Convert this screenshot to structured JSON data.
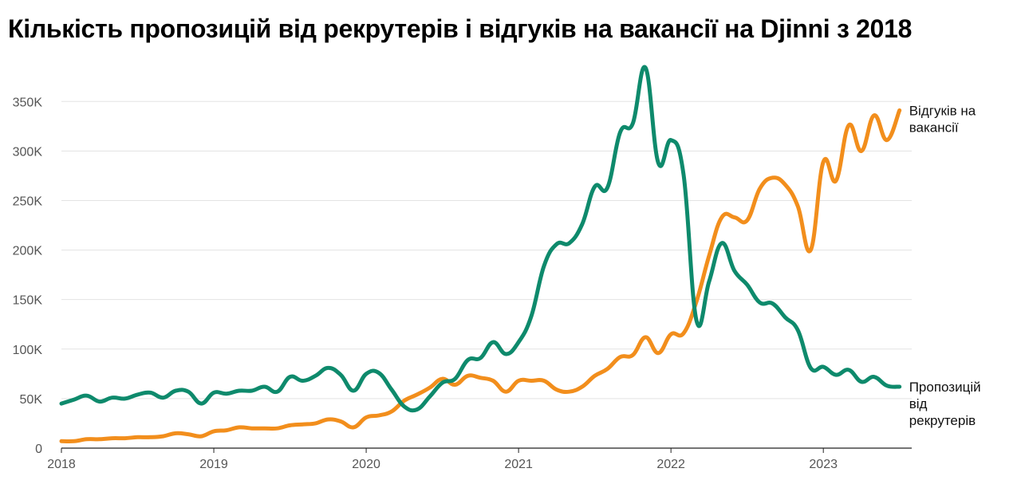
{
  "chart_data": {
    "type": "line",
    "title": "Кількість пропозицій від рекрутерів і відгуків на вакансії на Djinni з 2018",
    "xlabel": "",
    "ylabel": "",
    "x_tick_labels": [
      "2018",
      "2019",
      "2020",
      "2021",
      "2022",
      "2023"
    ],
    "x_ticks": [
      2018,
      2019,
      2020,
      2021,
      2022,
      2023
    ],
    "xlim": [
      2018,
      2023.58
    ],
    "y_tick_labels": [
      "0",
      "50K",
      "100K",
      "150K",
      "200K",
      "250K",
      "300K",
      "350K"
    ],
    "y_ticks": [
      0,
      50000,
      100000,
      150000,
      200000,
      250000,
      300000,
      350000
    ],
    "ylim": [
      0,
      380000
    ],
    "grid": true,
    "series": [
      {
        "name": "Пропозицій від рекрутерів",
        "label_lines": [
          "Пропозицій",
          "від",
          "рекрутерів"
        ],
        "color": "#0e8a6c",
        "points": [
          [
            2018.0,
            45000
          ],
          [
            2018.083,
            49000
          ],
          [
            2018.167,
            53000
          ],
          [
            2018.25,
            47000
          ],
          [
            2018.333,
            51000
          ],
          [
            2018.417,
            50000
          ],
          [
            2018.5,
            54000
          ],
          [
            2018.583,
            56000
          ],
          [
            2018.667,
            51000
          ],
          [
            2018.75,
            58000
          ],
          [
            2018.833,
            57000
          ],
          [
            2018.917,
            45000
          ],
          [
            2019.0,
            56000
          ],
          [
            2019.083,
            55000
          ],
          [
            2019.167,
            58000
          ],
          [
            2019.25,
            58000
          ],
          [
            2019.333,
            62000
          ],
          [
            2019.417,
            57000
          ],
          [
            2019.5,
            72000
          ],
          [
            2019.583,
            68000
          ],
          [
            2019.667,
            73000
          ],
          [
            2019.75,
            81000
          ],
          [
            2019.833,
            74000
          ],
          [
            2019.917,
            58000
          ],
          [
            2020.0,
            75000
          ],
          [
            2020.083,
            76000
          ],
          [
            2020.167,
            59000
          ],
          [
            2020.25,
            42000
          ],
          [
            2020.333,
            39000
          ],
          [
            2020.417,
            52000
          ],
          [
            2020.5,
            66000
          ],
          [
            2020.583,
            70000
          ],
          [
            2020.667,
            89000
          ],
          [
            2020.75,
            91000
          ],
          [
            2020.833,
            107000
          ],
          [
            2020.917,
            95000
          ],
          [
            2021.0,
            107000
          ],
          [
            2021.083,
            133000
          ],
          [
            2021.167,
            184000
          ],
          [
            2021.25,
            206000
          ],
          [
            2021.333,
            207000
          ],
          [
            2021.417,
            226000
          ],
          [
            2021.5,
            264000
          ],
          [
            2021.583,
            263000
          ],
          [
            2021.667,
            319000
          ],
          [
            2021.75,
            328000
          ],
          [
            2021.833,
            384000
          ],
          [
            2021.917,
            288000
          ],
          [
            2022.0,
            311000
          ],
          [
            2022.083,
            276000
          ],
          [
            2022.167,
            129000
          ],
          [
            2022.25,
            168000
          ],
          [
            2022.333,
            207000
          ],
          [
            2022.417,
            179000
          ],
          [
            2022.5,
            165000
          ],
          [
            2022.583,
            147000
          ],
          [
            2022.667,
            146000
          ],
          [
            2022.75,
            132000
          ],
          [
            2022.833,
            119000
          ],
          [
            2022.917,
            81000
          ],
          [
            2023.0,
            82000
          ],
          [
            2023.083,
            74000
          ],
          [
            2023.167,
            79000
          ],
          [
            2023.25,
            67000
          ],
          [
            2023.333,
            72000
          ],
          [
            2023.417,
            63000
          ],
          [
            2023.5,
            62000
          ]
        ]
      },
      {
        "name": "Відгуків на вакансії",
        "label_lines": [
          "Відгуків на",
          "вакансії"
        ],
        "color": "#f28e1c",
        "points": [
          [
            2018.0,
            7000
          ],
          [
            2018.083,
            7000
          ],
          [
            2018.167,
            9000
          ],
          [
            2018.25,
            9000
          ],
          [
            2018.333,
            10000
          ],
          [
            2018.417,
            10000
          ],
          [
            2018.5,
            11000
          ],
          [
            2018.583,
            11000
          ],
          [
            2018.667,
            12000
          ],
          [
            2018.75,
            15000
          ],
          [
            2018.833,
            14000
          ],
          [
            2018.917,
            12000
          ],
          [
            2019.0,
            17000
          ],
          [
            2019.083,
            18000
          ],
          [
            2019.167,
            21000
          ],
          [
            2019.25,
            20000
          ],
          [
            2019.333,
            20000
          ],
          [
            2019.417,
            20000
          ],
          [
            2019.5,
            23000
          ],
          [
            2019.583,
            24000
          ],
          [
            2019.667,
            25000
          ],
          [
            2019.75,
            29000
          ],
          [
            2019.833,
            27000
          ],
          [
            2019.917,
            21000
          ],
          [
            2020.0,
            31000
          ],
          [
            2020.083,
            33000
          ],
          [
            2020.167,
            37000
          ],
          [
            2020.25,
            48000
          ],
          [
            2020.333,
            54000
          ],
          [
            2020.417,
            61000
          ],
          [
            2020.5,
            70000
          ],
          [
            2020.583,
            64000
          ],
          [
            2020.667,
            73000
          ],
          [
            2020.75,
            71000
          ],
          [
            2020.833,
            68000
          ],
          [
            2020.917,
            57000
          ],
          [
            2021.0,
            68000
          ],
          [
            2021.083,
            68000
          ],
          [
            2021.167,
            68000
          ],
          [
            2021.25,
            59000
          ],
          [
            2021.333,
            57000
          ],
          [
            2021.417,
            62000
          ],
          [
            2021.5,
            73000
          ],
          [
            2021.583,
            80000
          ],
          [
            2021.667,
            92000
          ],
          [
            2021.75,
            94000
          ],
          [
            2021.833,
            112000
          ],
          [
            2021.917,
            96000
          ],
          [
            2022.0,
            115000
          ],
          [
            2022.083,
            116000
          ],
          [
            2022.167,
            148000
          ],
          [
            2022.25,
            194000
          ],
          [
            2022.333,
            233000
          ],
          [
            2022.417,
            233000
          ],
          [
            2022.5,
            230000
          ],
          [
            2022.583,
            262000
          ],
          [
            2022.667,
            273000
          ],
          [
            2022.75,
            266000
          ],
          [
            2022.833,
            244000
          ],
          [
            2022.917,
            200000
          ],
          [
            2023.0,
            289000
          ],
          [
            2023.083,
            270000
          ],
          [
            2023.167,
            326000
          ],
          [
            2023.25,
            300000
          ],
          [
            2023.333,
            336000
          ],
          [
            2023.417,
            311000
          ],
          [
            2023.5,
            341000
          ]
        ]
      }
    ]
  }
}
